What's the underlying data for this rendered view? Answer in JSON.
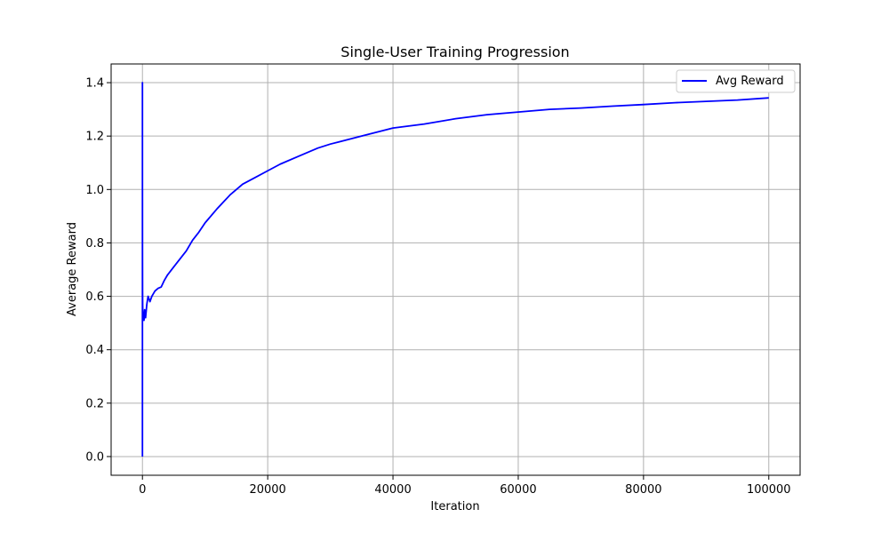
{
  "chart_data": {
    "type": "line",
    "title": "Single-User Training Progression",
    "xlabel": "Iteration",
    "ylabel": "Average Reward",
    "xlim": [
      -5000,
      105000
    ],
    "ylim": [
      -0.07,
      1.47
    ],
    "grid": true,
    "legend_position": "top-right",
    "x_ticks": [
      0,
      20000,
      40000,
      60000,
      80000,
      100000
    ],
    "x_tick_labels": [
      "0",
      "20000",
      "40000",
      "60000",
      "80000",
      "100000"
    ],
    "y_ticks": [
      0.0,
      0.2,
      0.4,
      0.6,
      0.8,
      1.0,
      1.2,
      1.4
    ],
    "y_tick_labels": [
      "0.0",
      "0.2",
      "0.4",
      "0.6",
      "0.8",
      "1.0",
      "1.2",
      "1.4"
    ],
    "colors": {
      "series": "#0000ff",
      "grid": "#b0b0b0",
      "axes": "#000000"
    },
    "series": [
      {
        "name": "Avg Reward",
        "x": [
          0,
          1,
          2,
          5,
          10,
          20,
          40,
          80,
          150,
          250,
          350,
          500,
          700,
          900,
          1200,
          1500,
          2000,
          2500,
          3000,
          3500,
          4000,
          5000,
          6000,
          7000,
          8000,
          9000,
          10000,
          12000,
          14000,
          16000,
          18000,
          20000,
          22000,
          25000,
          28000,
          30000,
          35000,
          40000,
          45000,
          50000,
          55000,
          60000,
          65000,
          70000,
          75000,
          80000,
          85000,
          90000,
          95000,
          100000
        ],
        "y": [
          0.0,
          1.4,
          0.8,
          1.0,
          0.75,
          0.62,
          0.56,
          0.53,
          0.54,
          0.51,
          0.55,
          0.52,
          0.57,
          0.6,
          0.58,
          0.6,
          0.62,
          0.63,
          0.635,
          0.66,
          0.68,
          0.71,
          0.74,
          0.77,
          0.81,
          0.84,
          0.875,
          0.93,
          0.98,
          1.02,
          1.045,
          1.07,
          1.095,
          1.125,
          1.155,
          1.17,
          1.2,
          1.23,
          1.245,
          1.265,
          1.28,
          1.29,
          1.3,
          1.305,
          1.312,
          1.318,
          1.325,
          1.33,
          1.335,
          1.343
        ]
      }
    ]
  }
}
